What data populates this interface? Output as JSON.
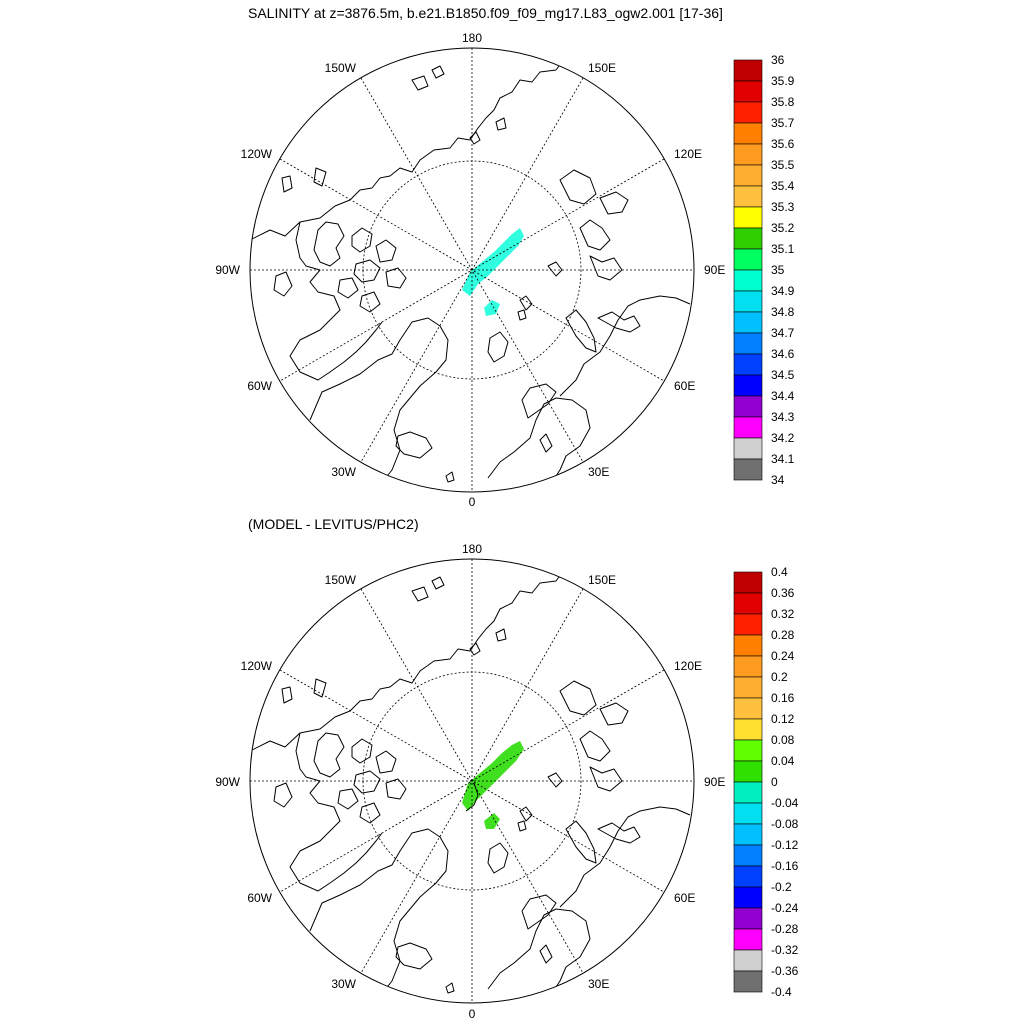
{
  "top_panel": {
    "title": "SALINITY at z=3876.5m, b.e21.B1850.f09_f09_mg17.L83_ogw2.001 [17-36]",
    "longitude_labels": {
      "lon_180": "180",
      "lon_150w": "150W",
      "lon_150e": "150E",
      "lon_120w": "120W",
      "lon_120e": "120E",
      "lon_90w": "90W",
      "lon_90e": "90E",
      "lon_60w": "60W",
      "lon_60e": "60E",
      "lon_30w": "30W",
      "lon_30e": "30E",
      "lon_0": "0"
    },
    "colorbar": {
      "labels": [
        "36",
        "35.9",
        "35.8",
        "35.7",
        "35.6",
        "35.5",
        "35.4",
        "35.3",
        "35.2",
        "35.1",
        "35",
        "34.9",
        "34.8",
        "34.7",
        "34.6",
        "34.5",
        "34.4",
        "34.3",
        "34.2",
        "34.1",
        "34"
      ],
      "colors": [
        "#c00000",
        "#e00000",
        "#ff2000",
        "#ff8000",
        "#ff9a20",
        "#ffb030",
        "#ffc040",
        "#ffff00",
        "#30d000",
        "#00ff60",
        "#00ffd0",
        "#00e0f0",
        "#00c0ff",
        "#0080ff",
        "#0040ff",
        "#0000ff",
        "#9000d0",
        "#ff00ff",
        "#d0d0d0",
        "#707070"
      ]
    }
  },
  "bottom_panel": {
    "title": "(MODEL - LEVITUS/PHC2)",
    "longitude_labels": {
      "lon_180": "180",
      "lon_150w": "150W",
      "lon_150e": "150E",
      "lon_120w": "120W",
      "lon_120e": "120E",
      "lon_90w": "90W",
      "lon_90e": "90E",
      "lon_60w": "60W",
      "lon_60e": "60E",
      "lon_30w": "30W",
      "lon_30e": "30E",
      "lon_0": "0"
    },
    "colorbar": {
      "labels": [
        "0.4",
        "0.36",
        "0.32",
        "0.28",
        "0.24",
        "0.2",
        "0.16",
        "0.12",
        "0.08",
        "0.04",
        "0",
        "-0.04",
        "-0.08",
        "-0.12",
        "-0.16",
        "-0.2",
        "-0.24",
        "-0.28",
        "-0.32",
        "-0.36",
        "-0.4"
      ],
      "colors": [
        "#c00000",
        "#e00000",
        "#ff2000",
        "#ff8000",
        "#ff9a20",
        "#ffb030",
        "#ffc040",
        "#ffe030",
        "#60ff00",
        "#30e000",
        "#00f0c0",
        "#00e0f0",
        "#00c0ff",
        "#0080ff",
        "#0040ff",
        "#0000ff",
        "#9000d0",
        "#ff00ff",
        "#d0d0d0",
        "#707070"
      ]
    }
  },
  "fields": {
    "top_patch_color": "#30ffe0",
    "bottom_patch_color": "#40e020"
  }
}
